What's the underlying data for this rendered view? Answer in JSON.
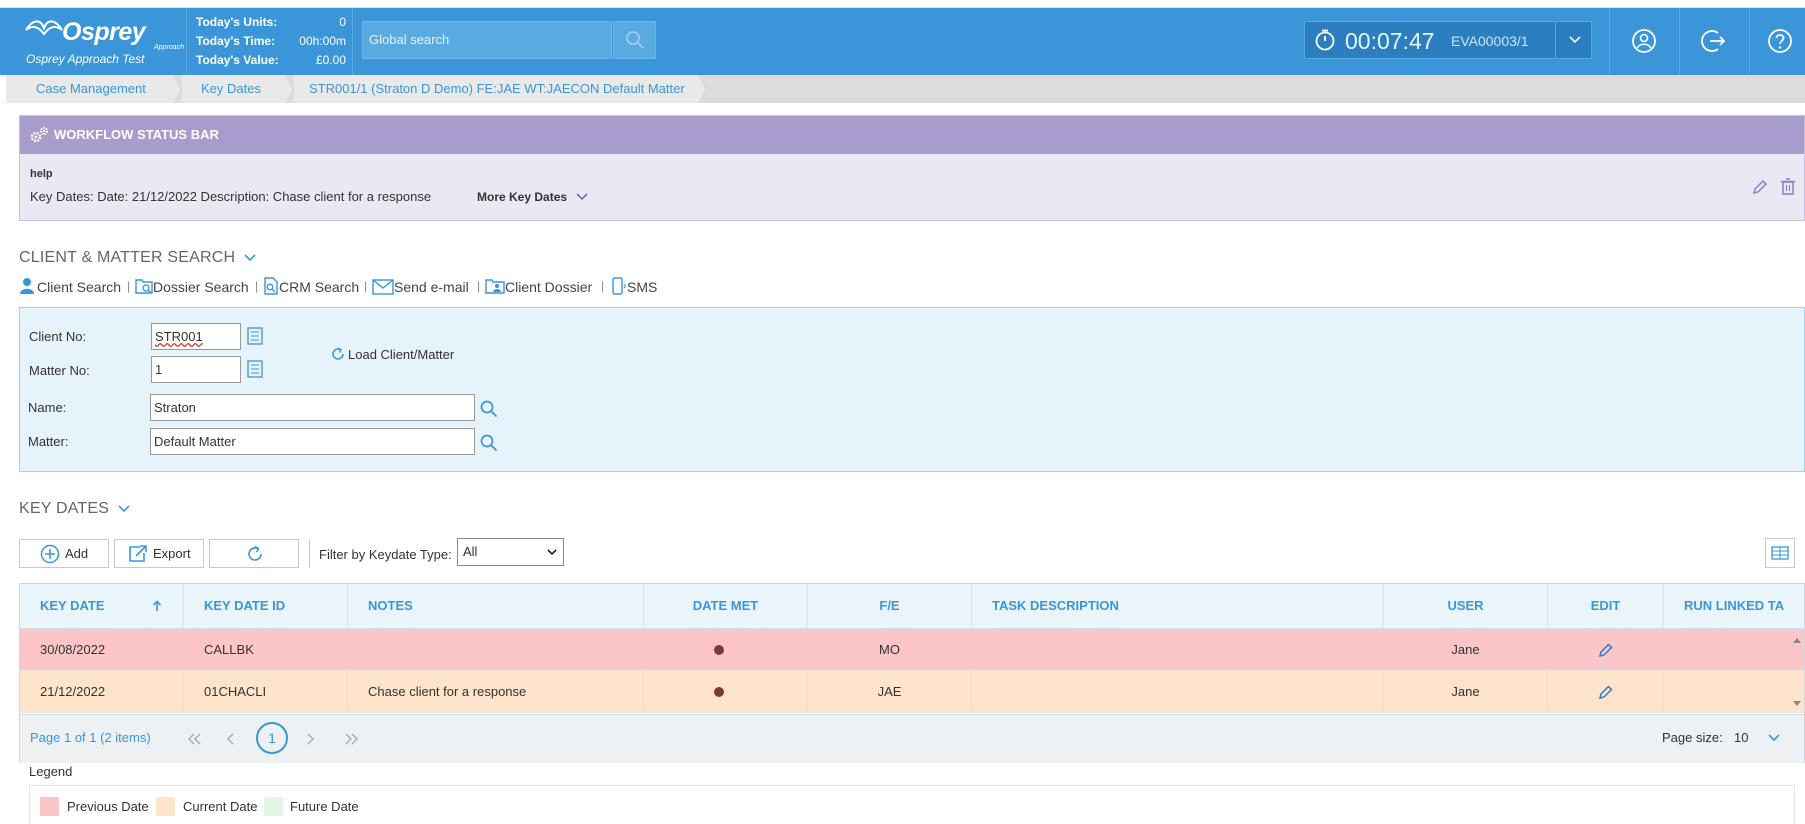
{
  "header": {
    "logo_text": "Osprey",
    "logo_sub": "Approach",
    "app_caption": "Osprey Approach Test",
    "stats": [
      {
        "label": "Today's Units:",
        "value": "0"
      },
      {
        "label": "Today's Time:",
        "value": "00h:00m"
      },
      {
        "label": "Today's Value:",
        "value": "£0.00"
      }
    ],
    "search_placeholder": "Global search",
    "timer": {
      "time": "00:07:47",
      "matter_code": "EVA00003/1"
    }
  },
  "breadcrumb": [
    "Case Management",
    "Key Dates",
    "STR001/1 (Straton D Demo) FE:JAE WT:JAECON Default Matter"
  ],
  "workflow": {
    "title": "WORKFLOW STATUS BAR",
    "help": "help",
    "key_dates_line": "Key Dates: Date: 21/12/2022  Description: Chase client for a response",
    "more_key_dates": "More Key Dates"
  },
  "client_matter": {
    "section_title": "CLIENT & MATTER SEARCH",
    "tools": [
      "Client Search",
      "Dossier Search",
      "CRM Search",
      "Send e-mail",
      "Client Dossier",
      "SMS"
    ],
    "client_no_label": "Client No:",
    "client_no": "STR001",
    "matter_no_label": "Matter No:",
    "matter_no": "1",
    "load_label": "Load Client/Matter",
    "name_label": "Name:",
    "name": "Straton",
    "matter_label": "Matter:",
    "matter": "Default Matter"
  },
  "key_dates": {
    "section_title": "KEY DATES",
    "add_label": "Add",
    "export_label": "Export",
    "filter_label": "Filter by Keydate Type:",
    "filter_value": "All",
    "columns": [
      "KEY DATE",
      "KEY DATE ID",
      "NOTES",
      "DATE MET",
      "F/E",
      "TASK DESCRIPTION",
      "USER",
      "EDIT",
      "RUN LINKED TA"
    ],
    "rows": [
      {
        "key_date": "30/08/2022",
        "key_date_id": "CALLBK",
        "notes": "",
        "fe": "MO",
        "task": "",
        "user": "Jane",
        "status_color": "#fcc6c8"
      },
      {
        "key_date": "21/12/2022",
        "key_date_id": "01CHACLI",
        "notes": "Chase client for a response",
        "fe": "JAE",
        "task": "",
        "user": "Jane",
        "status_color": "#fde4ca"
      }
    ],
    "pager_info": "Page 1 of 1 (2 items)",
    "current_page": "1",
    "page_size_label": "Page size:",
    "page_size": "10"
  },
  "legend": {
    "title": "Legend",
    "items": [
      {
        "label": "Previous Date",
        "color": "#fcc6c8"
      },
      {
        "label": "Current Date",
        "color": "#fde4ca"
      },
      {
        "label": "Future Date",
        "color": "#e3f5e6"
      }
    ]
  },
  "colors": {
    "brand": "#3a96d8",
    "workflow": "#a89ccc"
  }
}
